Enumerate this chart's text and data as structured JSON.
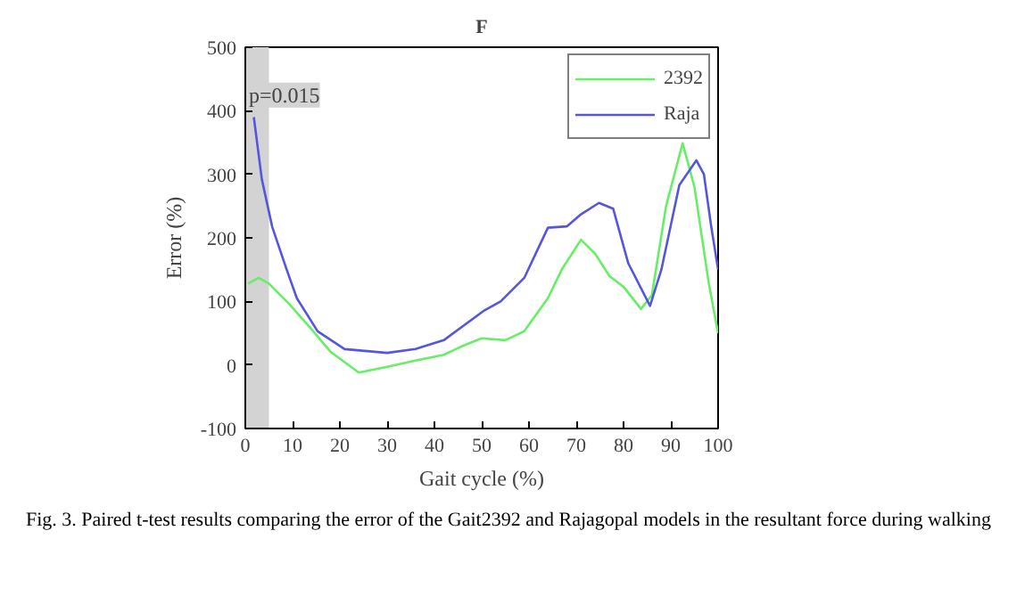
{
  "chart_data": {
    "type": "line",
    "title": "F",
    "xlabel": "Gait cycle (%)",
    "ylabel": "Error (%)",
    "xlim": [
      0,
      100
    ],
    "xticks": [
      0,
      10,
      20,
      30,
      40,
      50,
      60,
      70,
      80,
      90,
      100
    ],
    "ylim": [
      -100,
      500
    ],
    "yticks": [
      -100,
      0,
      100,
      200,
      300,
      400,
      500
    ],
    "grid": false,
    "legend": "top right",
    "line_style": "solid",
    "series": [
      {
        "name": "2392",
        "color": "#66ee66",
        "x": [
          0.6,
          2.8,
          5,
          9.4,
          13.8,
          18,
          24,
          30,
          36,
          42,
          46,
          50,
          55,
          59,
          64,
          67,
          71,
          74,
          77,
          80,
          83.7,
          86,
          89,
          92.5,
          95,
          98,
          100
        ],
        "values": [
          128,
          137,
          128,
          95,
          58,
          21,
          -12,
          -3,
          7,
          16,
          30,
          42,
          39,
          53,
          105,
          151,
          197,
          175,
          140,
          123,
          88,
          110,
          250,
          349,
          280,
          130,
          50
        ]
      },
      {
        "name": "Raja",
        "color": "#5555dd",
        "x": [
          1.8,
          3.5,
          5.7,
          8.7,
          10.9,
          15.3,
          21,
          30,
          36,
          42,
          50.6,
          54,
          59,
          64,
          68,
          71,
          74.8,
          77.8,
          81,
          85.6,
          88,
          91.8,
          95.4,
          97,
          98.5,
          100
        ],
        "values": [
          390,
          292,
          217,
          151,
          105,
          53,
          25,
          19,
          25,
          39,
          86,
          100,
          137,
          216,
          218,
          237,
          255,
          246,
          160,
          93,
          150,
          283,
          322,
          300,
          220,
          150
        ]
      }
    ],
    "bands": [
      {
        "axis": "x",
        "from": 0,
        "to": 5,
        "label": "p=0.015",
        "color": "#d3d3d3"
      }
    ],
    "annotations": [
      "Fig. 3. Paired t-test results comparing the error of the Gait2392 and Rajagopal models in the resultant force during walking"
    ]
  }
}
